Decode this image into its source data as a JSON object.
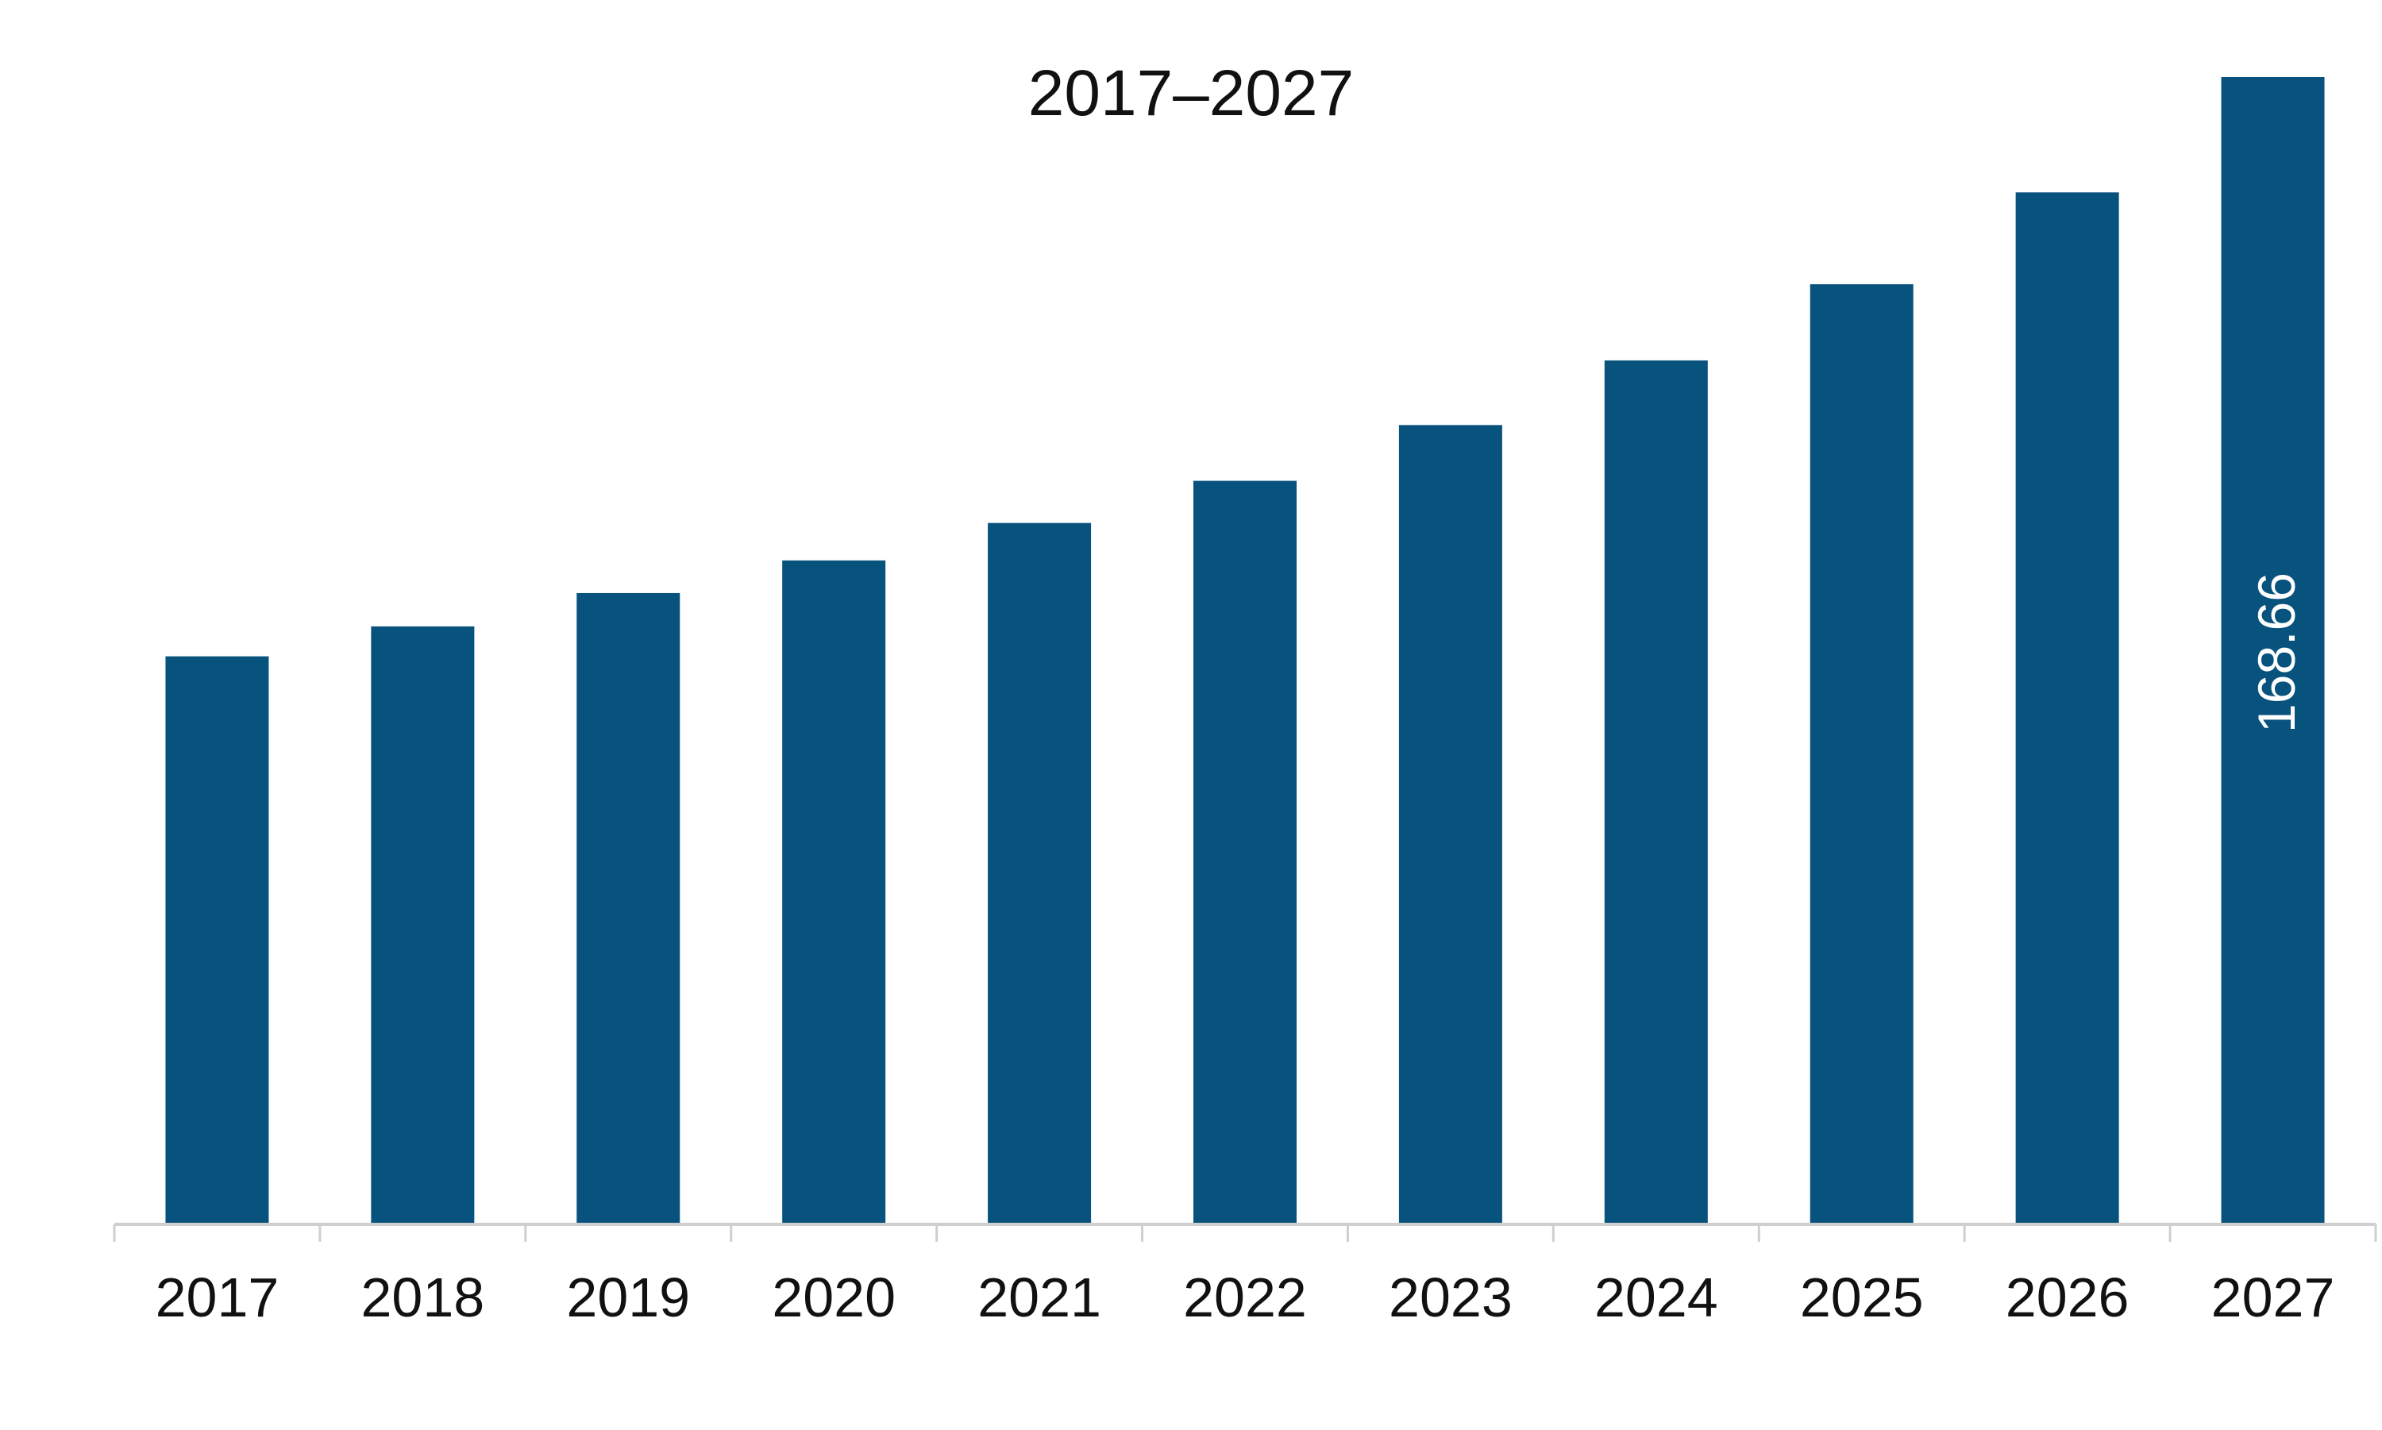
{
  "chart_data": {
    "type": "bar",
    "title": "2017–2027",
    "xlabel": "",
    "ylabel": "",
    "categories": [
      "2017",
      "2018",
      "2019",
      "2020",
      "2021",
      "2022",
      "2023",
      "2024",
      "2025",
      "2026",
      "2027"
    ],
    "values": [
      83.5,
      87.9,
      92.8,
      97.6,
      103.1,
      109.3,
      117.5,
      127.0,
      138.2,
      151.7,
      168.66
    ],
    "data_labels": [
      "",
      "",
      "",
      "",
      "",
      "",
      "",
      "",
      "",
      "",
      "168.66"
    ],
    "ylim": [
      0,
      168.66
    ],
    "grid": false,
    "legend": "none",
    "colors": {
      "bar": "#08527e",
      "axis": "#cfcfcf",
      "text": "#111111",
      "data_label": "#ffffff"
    }
  }
}
